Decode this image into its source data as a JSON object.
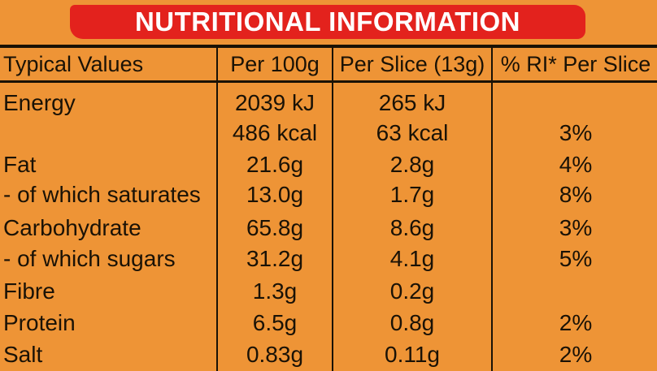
{
  "title": "NUTRITIONAL INFORMATION",
  "headers": [
    "Typical Values",
    "Per 100g",
    "Per Slice (13g)",
    "% RI* Per Slice"
  ],
  "rows": [
    [
      "Energy",
      "2039 kJ",
      "265 kJ",
      ""
    ],
    [
      "",
      "486 kcal",
      "63 kcal",
      "3%"
    ],
    [
      "Fat",
      "21.6g",
      "2.8g",
      "4%"
    ],
    [
      "- of which saturates",
      "13.0g",
      "1.7g",
      "8%"
    ],
    [
      "Carbohydrate",
      "65.8g",
      "8.6g",
      "3%"
    ],
    [
      "- of which sugars",
      "31.2g",
      "4.1g",
      "5%"
    ],
    [
      "Fibre",
      "1.3g",
      "0.2g",
      ""
    ],
    [
      "Protein",
      "6.5g",
      "0.8g",
      "2%"
    ],
    [
      "Salt",
      "0.83g",
      "0.11g",
      "2%"
    ]
  ],
  "colors": {
    "background": "#ee9436",
    "banner": "#e3221d",
    "text": "#1a1206"
  }
}
